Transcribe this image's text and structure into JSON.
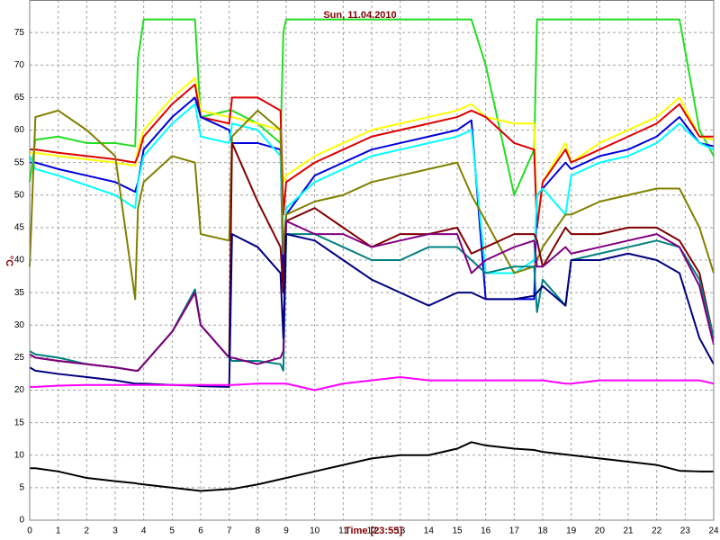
{
  "chart_data": {
    "type": "line",
    "title": "Sun, 11.04.2010",
    "x_label": "Time [23:55]",
    "y_label": "°C",
    "x": [
      0,
      0.2,
      1,
      2,
      3,
      3.7,
      3.8,
      4,
      5,
      5.8,
      6,
      7,
      7.1,
      8,
      8.8,
      8.9,
      9,
      10,
      11,
      12,
      13,
      14,
      15,
      15.5,
      16,
      17,
      17.7,
      17.8,
      18,
      18.8,
      19,
      20,
      21,
      22,
      22.8,
      23.5,
      24
    ],
    "xlim": [
      0,
      24
    ],
    "xticks": [
      0,
      1,
      2,
      3,
      4,
      5,
      6,
      7,
      8,
      9,
      10,
      11,
      12,
      13,
      14,
      15,
      16,
      17,
      18,
      19,
      20,
      21,
      22,
      23,
      24
    ],
    "ylim": [
      0,
      80
    ],
    "yticks": [
      0,
      5,
      10,
      15,
      20,
      25,
      30,
      35,
      40,
      45,
      50,
      55,
      60,
      65,
      70,
      75
    ],
    "grid": true,
    "series": [
      {
        "color": "#22dd22",
        "values": [
          52,
          58.5,
          59,
          58,
          58,
          57.5,
          71,
          77,
          77,
          77,
          62,
          63,
          63,
          61,
          58,
          75,
          77,
          77,
          77,
          77,
          77,
          77,
          77,
          77,
          70,
          50,
          57,
          77,
          77,
          77,
          77,
          77,
          77,
          77,
          77,
          60,
          56
        ]
      },
      {
        "color": "#ffff00",
        "values": [
          56.5,
          56.5,
          56,
          55.5,
          55,
          54.5,
          57,
          60,
          65,
          68,
          63,
          62,
          62,
          61,
          60,
          52,
          53,
          56,
          58,
          60,
          61,
          62,
          63,
          64,
          62,
          61,
          61,
          45,
          52,
          58,
          55,
          58,
          60,
          62,
          65,
          59,
          58.5
        ]
      },
      {
        "color": "#dd0000",
        "values": [
          57,
          57,
          56.5,
          56,
          55.5,
          55,
          56,
          59,
          64,
          67,
          62,
          61,
          65,
          65,
          63,
          47,
          52,
          55,
          57,
          59,
          60,
          61,
          62,
          63,
          62,
          58,
          57,
          45,
          52,
          57,
          55,
          57,
          59,
          61,
          64,
          59,
          59
        ]
      },
      {
        "color": "#0000dd",
        "values": [
          55,
          55,
          54,
          53,
          52,
          50.5,
          52,
          57,
          62,
          65,
          62,
          60,
          58,
          58,
          57,
          37,
          47,
          53,
          55,
          57,
          58,
          59,
          60,
          61.5,
          34,
          34,
          34,
          50,
          51,
          55,
          54,
          56,
          57,
          59,
          62,
          58,
          57.5
        ]
      },
      {
        "color": "#00ffff",
        "values": [
          56,
          54,
          53,
          51.5,
          50,
          48,
          52,
          56,
          61,
          64,
          59,
          58,
          61,
          60,
          56,
          41,
          48,
          52,
          54,
          56,
          57,
          58,
          59,
          60,
          38,
          38,
          40,
          50,
          51,
          47,
          53,
          55,
          56,
          58,
          61,
          58,
          57
        ]
      },
      {
        "color": "#808000",
        "values": [
          39,
          62,
          63,
          60,
          56,
          34,
          48,
          52,
          56,
          55,
          44,
          43,
          59,
          63,
          60,
          41,
          47,
          49,
          50,
          52,
          53,
          54,
          55,
          50,
          46,
          38,
          39,
          40,
          42,
          47,
          47,
          49,
          50,
          51,
          51,
          45,
          38
        ]
      },
      {
        "color": "#800000",
        "values": [
          25.5,
          25,
          24.5,
          24,
          23.5,
          23,
          23,
          24,
          29,
          35,
          30,
          25,
          58,
          49,
          42,
          35,
          46,
          48,
          45,
          42,
          44,
          44,
          45,
          41,
          42,
          44,
          44,
          43,
          39,
          45,
          44,
          44,
          45,
          45,
          43,
          38,
          28
        ]
      },
      {
        "color": "#008080",
        "values": [
          26,
          25.5,
          25,
          24,
          23.5,
          23,
          23,
          24,
          29,
          35.5,
          30,
          25,
          24.5,
          24.5,
          24,
          23,
          44,
          44,
          42,
          40,
          40,
          42,
          42,
          40,
          38,
          39,
          39,
          32,
          37,
          33,
          40,
          41,
          42,
          43,
          42,
          37,
          28
        ]
      },
      {
        "color": "#800080",
        "values": [
          25.5,
          25,
          24.5,
          24,
          23.5,
          23,
          23,
          24,
          29,
          35,
          30,
          25,
          25,
          24,
          25,
          26,
          46,
          44,
          44,
          42,
          43,
          44,
          44,
          38,
          40,
          42,
          43,
          39,
          39,
          42,
          41,
          42,
          43,
          44,
          42,
          36,
          27
        ]
      },
      {
        "color": "#000080",
        "values": [
          23.5,
          23,
          22.5,
          22,
          21.5,
          21,
          21,
          21,
          20.8,
          20.7,
          20.6,
          20.5,
          44,
          42,
          38,
          28,
          44,
          43,
          40,
          37,
          35,
          33,
          35,
          35,
          34,
          34,
          34.5,
          35,
          36,
          33,
          40,
          40,
          41,
          40,
          38,
          28,
          24
        ]
      },
      {
        "color": "#ff00ff",
        "values": [
          20.5,
          20.5,
          20.7,
          20.8,
          20.8,
          20.8,
          20.8,
          20.8,
          20.8,
          20.8,
          20.8,
          20.8,
          20.8,
          21,
          21,
          21,
          21,
          20,
          21,
          21.5,
          22,
          21.5,
          21.5,
          21.5,
          21.5,
          21.5,
          21.5,
          21.5,
          21.5,
          21,
          21,
          21.5,
          21.5,
          21.5,
          21.5,
          21.5,
          21
        ]
      },
      {
        "color": "#000000",
        "values": [
          8,
          8,
          7.5,
          6.5,
          6,
          5.7,
          5.6,
          5.5,
          5,
          4.6,
          4.5,
          4.8,
          4.8,
          5.5,
          6.3,
          6.4,
          6.5,
          7.5,
          8.5,
          9.5,
          10,
          10,
          11,
          12,
          11.5,
          11,
          10.8,
          10.7,
          10.5,
          10.1,
          10,
          9.5,
          9,
          8.5,
          7.6,
          7.5,
          7.5
        ]
      }
    ]
  }
}
